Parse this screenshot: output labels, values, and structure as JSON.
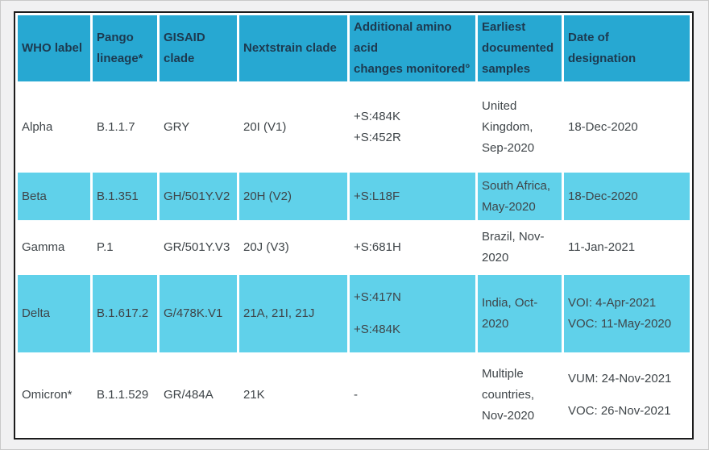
{
  "colors": {
    "header_bg": "#27a8d2",
    "header_text": "#1d3a50",
    "stripe_bg": "#60d1ea",
    "body_text": "#3f4549",
    "table_border": "#1c1c1c",
    "page_bg": "#f1f1f2",
    "cell_gap": "#ffffff"
  },
  "table": {
    "columns": [
      {
        "key": "who_label",
        "label": "WHO label"
      },
      {
        "key": "pango_lineage",
        "label": "Pango\nlineage*"
      },
      {
        "key": "gisaid_clade",
        "label": "GISAID\nclade"
      },
      {
        "key": "nextstrain_clade",
        "label": "Nextstrain clade"
      },
      {
        "key": "amino_acid_changes",
        "label": "Additional amino\nacid\nchanges monitored°"
      },
      {
        "key": "earliest_samples",
        "label": "Earliest\ndocumented\nsamples"
      },
      {
        "key": "date_designation",
        "label": "Date of\ndesignation"
      }
    ],
    "rows": [
      {
        "id": "alpha",
        "highlight": false,
        "cells": {
          "who_label": "Alpha",
          "pango_lineage": "B.1.1.7",
          "gisaid_clade": "GRY",
          "nextstrain_clade": "20I (V1)",
          "amino_acid_changes": {
            "lines": [
              "+S:484K",
              "+S:452R"
            ],
            "spaced": false
          },
          "earliest_samples": "United Kingdom, Sep-2020",
          "date_designation": "18-Dec-2020"
        }
      },
      {
        "id": "beta",
        "highlight": true,
        "cells": {
          "who_label": "Beta",
          "pango_lineage": "B.1.351",
          "gisaid_clade": "GH/501Y.V2",
          "nextstrain_clade": "20H (V2)",
          "amino_acid_changes": "+S:L18F",
          "earliest_samples": "South Africa, May-2020",
          "date_designation": "18-Dec-2020"
        }
      },
      {
        "id": "gamma",
        "highlight": false,
        "cells": {
          "who_label": "Gamma",
          "pango_lineage": "P.1",
          "gisaid_clade": "GR/501Y.V3",
          "nextstrain_clade": "20J (V3)",
          "amino_acid_changes": "+S:681H",
          "earliest_samples": "Brazil, Nov-2020",
          "date_designation": "11-Jan-2021"
        }
      },
      {
        "id": "delta",
        "highlight": true,
        "cells": {
          "who_label": "Delta",
          "pango_lineage": "B.1.617.2",
          "gisaid_clade": "G/478K.V1",
          "nextstrain_clade": "21A, 21I, 21J",
          "amino_acid_changes": {
            "lines": [
              "+S:417N",
              "+S:484K"
            ],
            "spaced": true
          },
          "earliest_samples": "India, Oct-2020",
          "date_designation": {
            "lines": [
              "VOI: 4-Apr-2021",
              "VOC: 11-May-2020"
            ],
            "spaced": false
          }
        }
      },
      {
        "id": "omicron",
        "highlight": false,
        "cells": {
          "who_label": "Omicron*",
          "pango_lineage": "B.1.1.529",
          "gisaid_clade": "GR/484A",
          "nextstrain_clade": "21K",
          "amino_acid_changes": "-",
          "earliest_samples": "Multiple countries, Nov-2020",
          "date_designation": {
            "lines": [
              "VUM: 24-Nov-2021",
              "VOC: 26-Nov-2021"
            ],
            "spaced": true
          }
        }
      }
    ]
  }
}
